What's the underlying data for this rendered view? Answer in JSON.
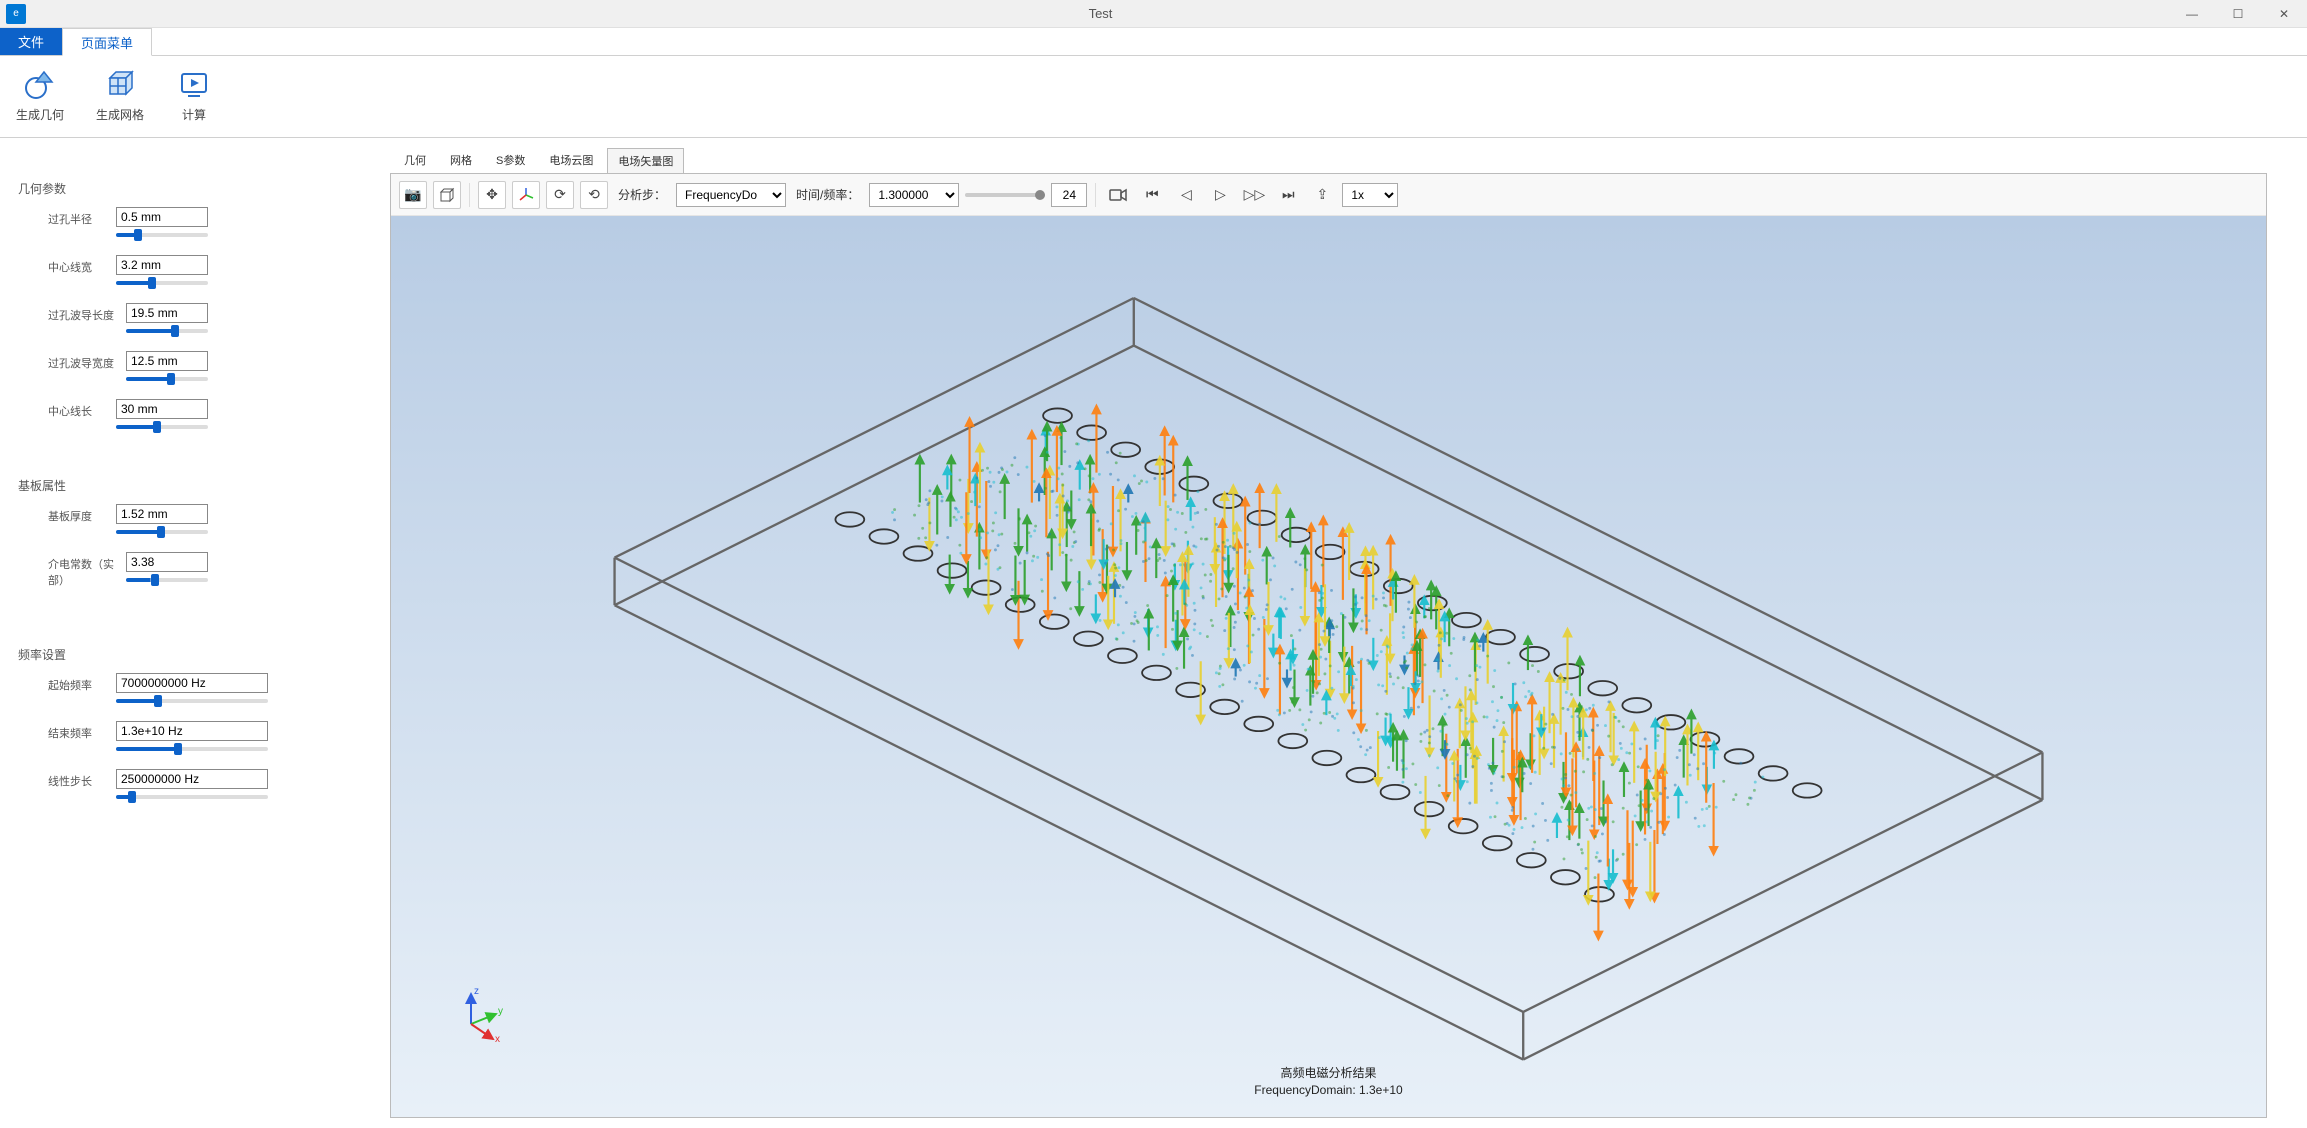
{
  "window": {
    "title": "Test",
    "app_icon_label": "e"
  },
  "menu": {
    "file": "文件",
    "page": "页面菜单"
  },
  "ribbon": {
    "gen_geom": "生成几何",
    "gen_mesh": "生成网格",
    "compute": "计算"
  },
  "sidebar": {
    "geom": {
      "title": "几何参数",
      "via_radius": {
        "label": "过孔半径",
        "value": "0.5 mm",
        "pct": 20
      },
      "center_width": {
        "label": "中心线宽",
        "value": "3.2 mm",
        "pct": 35
      },
      "via_wg_len": {
        "label": "过孔波导长度",
        "value": "19.5 mm",
        "pct": 55
      },
      "via_wg_width": {
        "label": "过孔波导宽度",
        "value": "12.5 mm",
        "pct": 50
      },
      "center_len": {
        "label": "中心线长",
        "value": "30 mm",
        "pct": 40
      }
    },
    "board": {
      "title": "基板属性",
      "thickness": {
        "label": "基板厚度",
        "value": "1.52 mm",
        "pct": 45
      },
      "eps": {
        "label": "介电常数（实部）",
        "value": "3.38",
        "pct": 30
      }
    },
    "freq": {
      "title": "频率设置",
      "start": {
        "label": "起始频率",
        "value": "7000000000 Hz",
        "pct": 25
      },
      "end": {
        "label": "结束频率",
        "value": "1.3e+10 Hz",
        "pct": 38
      },
      "step": {
        "label": "线性步长",
        "value": "250000000 Hz",
        "pct": 8
      }
    }
  },
  "content_tabs": {
    "geom": "几何",
    "mesh": "网格",
    "sparam": "S参数",
    "cloud": "电场云图",
    "vector": "电场矢量图"
  },
  "toolbar": {
    "step_label": "分析步：",
    "step_value": "FrequencyDo",
    "time_label": "时间/频率：",
    "time_value": "1.300000",
    "frame_value": "24",
    "speed_value": "1x"
  },
  "caption": {
    "line1": "高频电磁分析结果",
    "line2": "FrequencyDomain: 1.3e+10"
  },
  "viz": {
    "colors": {
      "bg_top": "#b8cce4",
      "bg_bottom": "#e8f0f8",
      "box_stroke": "#666666",
      "hole_stroke": "#333333",
      "axis_x": "#e03030",
      "axis_y": "#30c030",
      "axis_z": "#3060e0"
    },
    "arrow_palette": [
      "#d62728",
      "#ff7f0e",
      "#e8d030",
      "#2ca02c",
      "#17becf",
      "#1f77b4"
    ]
  }
}
